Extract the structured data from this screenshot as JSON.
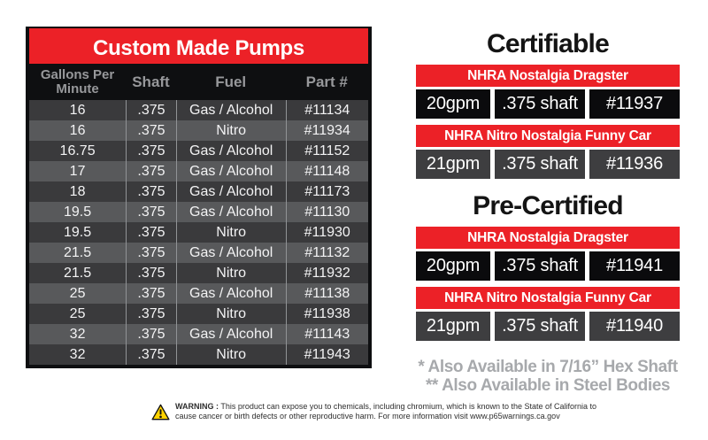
{
  "pump_table": {
    "title": "Custom Made Pumps",
    "headers": [
      "Gallons Per Minute",
      "Shaft",
      "Fuel",
      "Part #"
    ],
    "rows": [
      [
        "16",
        ".375",
        "Gas / Alcohol",
        "#11134"
      ],
      [
        "16",
        ".375",
        "Nitro",
        "#11934"
      ],
      [
        "16.75",
        ".375",
        "Gas / Alcohol",
        "#11152"
      ],
      [
        "17",
        ".375",
        "Gas / Alcohol",
        "#11148"
      ],
      [
        "18",
        ".375",
        "Gas / Alcohol",
        "#11173"
      ],
      [
        "19.5",
        ".375",
        "Gas / Alcohol",
        "#11130"
      ],
      [
        "19.5",
        ".375",
        "Nitro",
        "#11930"
      ],
      [
        "21.5",
        ".375",
        "Gas / Alcohol",
        "#11132"
      ],
      [
        "21.5",
        ".375",
        "Nitro",
        "#11932"
      ],
      [
        "25",
        ".375",
        "Gas / Alcohol",
        "#11138"
      ],
      [
        "25",
        ".375",
        "Nitro",
        "#11938"
      ],
      [
        "32",
        ".375",
        "Gas / Alcohol",
        "#11143"
      ],
      [
        "32",
        ".375",
        "Nitro",
        "#11943"
      ]
    ]
  },
  "sections": [
    {
      "heading": "Certifiable",
      "entries": [
        {
          "banner": "NHRA Nostalgia Dragster",
          "gpm": "20gpm",
          "shaft": ".375 shaft",
          "part": "#11937",
          "row_style": "black"
        },
        {
          "banner": "NHRA Nitro Nostalgia Funny Car",
          "gpm": "21gpm",
          "shaft": ".375 shaft",
          "part": "#11936",
          "row_style": "gray"
        }
      ]
    },
    {
      "heading": "Pre-Certified",
      "entries": [
        {
          "banner": "NHRA Nostalgia Dragster",
          "gpm": "20gpm",
          "shaft": ".375 shaft",
          "part": "#11941",
          "row_style": "black"
        },
        {
          "banner": "NHRA Nitro Nostalgia Funny Car",
          "gpm": "21gpm",
          "shaft": ".375 shaft",
          "part": "#11940",
          "row_style": "gray"
        }
      ]
    }
  ],
  "footnotes": [
    "* Also Available in 7/16” Hex Shaft",
    "** Also Available in Steel Bodies"
  ],
  "warning": {
    "label": "WARNING :",
    "line1": "This product can expose you to chemicals, including chromium, which is known to the State of California to",
    "line2": "cause cancer or birth defects or other reproductive harm. For more information visit www.p65warnings.ca.gov",
    "icon": "warning-triangle-icon"
  },
  "colors": {
    "red": "#ec2127",
    "row_dark": "#3a3a3c",
    "row_light": "#58595b",
    "right_row_black": "#0b0b0d",
    "right_row_gray": "#3e3e40",
    "header_text_gray": "#97989b",
    "footnote_gray": "#a7a9ac",
    "warning_yellow": "#ffd200"
  }
}
